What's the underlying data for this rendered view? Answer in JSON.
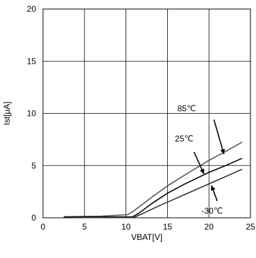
{
  "chart_data": {
    "type": "line",
    "title": "",
    "xlabel": "VBAT[V]",
    "ylabel": "Ist[μA]",
    "xlim": [
      0,
      25
    ],
    "ylim": [
      0,
      20
    ],
    "xticks": [
      "0",
      "5",
      "10",
      "15",
      "20",
      "25"
    ],
    "yticks": [
      "0",
      "5",
      "10",
      "15",
      "20"
    ],
    "grid": true,
    "series": [
      {
        "name": "85℃",
        "color": "#555555",
        "x": [
          2.5,
          7,
          10.2,
          11,
          13,
          15,
          17,
          20,
          22,
          24
        ],
        "y": [
          0.1,
          0.15,
          0.3,
          0.7,
          1.9,
          3.05,
          4.05,
          5.5,
          6.35,
          7.25
        ]
      },
      {
        "name": "25℃",
        "color": "#000000",
        "x": [
          2.5,
          10.8,
          11.5,
          13,
          15,
          17,
          20,
          22,
          24
        ],
        "y": [
          0.05,
          0.1,
          0.4,
          1.3,
          2.35,
          3.2,
          4.35,
          5.0,
          5.7
        ]
      },
      {
        "name": "-30℃",
        "color": "#333333",
        "x": [
          2.5,
          11.0,
          12,
          14,
          16,
          18,
          20,
          22,
          24
        ],
        "y": [
          0.0,
          0.05,
          0.4,
          1.15,
          1.85,
          2.55,
          3.25,
          3.95,
          4.65
        ]
      }
    ],
    "annotations": [
      {
        "text": "85℃",
        "arrow_to_series": 0
      },
      {
        "text": "25℃",
        "arrow_to_series": 1
      },
      {
        "text": "-30℃",
        "arrow_to_series": 2
      }
    ]
  }
}
